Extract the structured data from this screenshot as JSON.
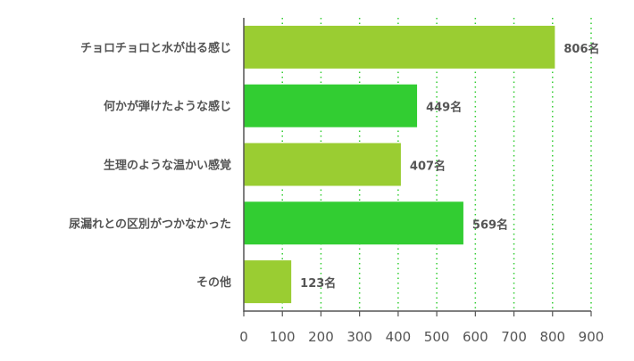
{
  "chart_data": {
    "type": "bar",
    "orientation": "horizontal",
    "categories": [
      "チョロチョロと水が出る感じ",
      "何かが弾けたような感じ",
      "生理のような温かい感覚",
      "尿漏れとの区別がつかなかった",
      "その他"
    ],
    "values": [
      806,
      449,
      407,
      569,
      123
    ],
    "value_suffix": "名",
    "bar_colors": [
      "#9acd32",
      "#32cd32",
      "#9acd32",
      "#32cd32",
      "#9acd32"
    ],
    "xlim": [
      0,
      900
    ],
    "xticks": [
      0,
      100,
      200,
      300,
      400,
      500,
      600,
      700,
      800,
      900
    ],
    "grid": true,
    "grid_style": "dotted",
    "grid_color": "#32cd32",
    "axis_color": "#555555",
    "title": "",
    "xlabel": "",
    "ylabel": ""
  }
}
